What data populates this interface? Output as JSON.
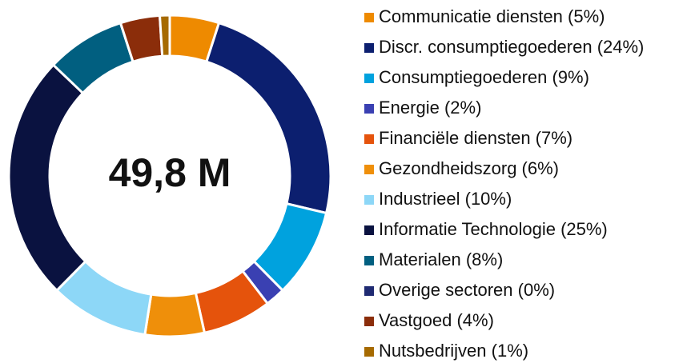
{
  "chart_data": {
    "type": "donut",
    "center_label": "49,8 M",
    "categories": [
      "Communicatie diensten (5%)",
      "Discr. consumptiegoederen (24%)",
      "Consumptiegoederen (9%)",
      "Energie (2%)",
      "Financiële diensten (7%)",
      "Gezondheidszorg (6%)",
      "Industrieel (10%)",
      "Informatie Technologie (25%)",
      "Materialen (8%)",
      "Overige sectoren (0%)",
      "Vastgoed (4%)",
      "Nutsbedrijven (1%)"
    ],
    "values": [
      5,
      24,
      9,
      2,
      7,
      6,
      10,
      25,
      8,
      0,
      4,
      1
    ],
    "colors": [
      "#ee8a00",
      "#0c1f6f",
      "#00a2de",
      "#3a40b2",
      "#e5530c",
      "#ef8f0a",
      "#8dd7f7",
      "#0a1240",
      "#015f80",
      "#1f2a72",
      "#8b2d0a",
      "#a66a00"
    ]
  }
}
